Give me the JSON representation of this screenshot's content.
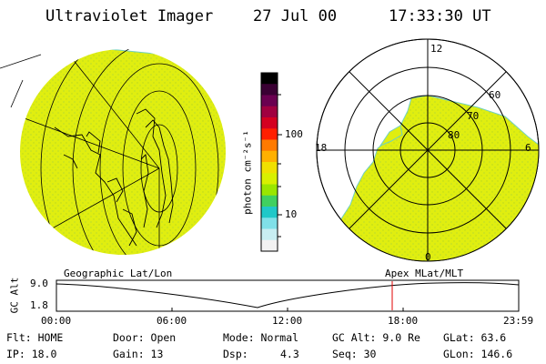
{
  "header": {
    "instrument": "Ultraviolet Imager",
    "date": "27 Jul 00",
    "time": "17:33:30 UT"
  },
  "colorbar": {
    "unit_label": "photon cm⁻²s⁻¹",
    "ticks": [
      "100",
      "10"
    ],
    "colors": [
      "#000000",
      "#3a0033",
      "#6a0050",
      "#a00040",
      "#d40020",
      "#ff1f00",
      "#ff7a00",
      "#ffb000",
      "#f0e000",
      "#d8f000",
      "#9ae600",
      "#40d060",
      "#20c8c8",
      "#80e0e8",
      "#c8eef2",
      "#f2f2f2"
    ]
  },
  "polar_plot": {
    "mlt_labels": [
      "12",
      "18",
      "6",
      "0"
    ],
    "lat_labels": [
      "60",
      "70",
      "80"
    ]
  },
  "timeline": {
    "left_label": "Geographic Lat/Lon",
    "right_label": "Apex MLat/MLT",
    "axis_title": "GC Alt",
    "y_ticks": [
      "9.0",
      "1.8"
    ],
    "x_ticks": [
      "00:00",
      "06:00",
      "12:00",
      "18:00",
      "23:59"
    ],
    "marker_time": "17:33",
    "marker_color": "#e00000"
  },
  "status": {
    "row1": {
      "flt": "Flt: HOME",
      "door": "Door: Open",
      "mode": "Mode: Normal",
      "gcalt": "GC Alt: 9.0 Re",
      "glat": "GLat:  63.6"
    },
    "row2": {
      "ip": "IP: 18.0",
      "gain": "Gain: 13",
      "dsp_label": "Dsp:",
      "dsp_value": "4.3",
      "seq": "Seq: 30",
      "glon": "GLon: 146.6"
    }
  },
  "colors": {
    "image_fill": "#e0ee10",
    "image_edge": "#70d0c0"
  }
}
